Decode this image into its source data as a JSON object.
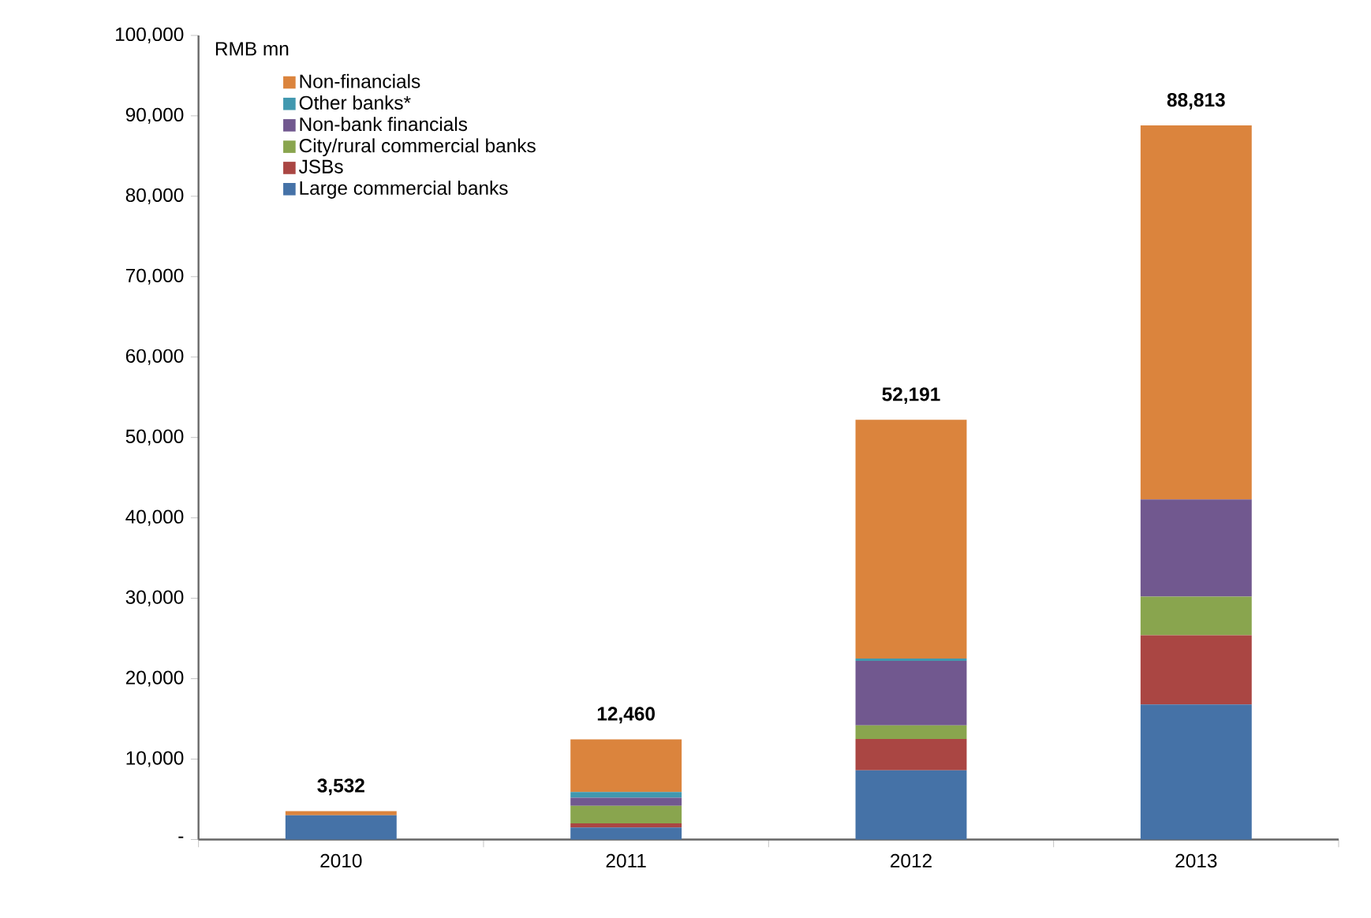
{
  "chart_data": {
    "type": "bar",
    "stacked": true,
    "ylabel": "RMB mn",
    "categories": [
      "2010",
      "2011",
      "2012",
      "2013"
    ],
    "series": [
      {
        "name": "Large commercial banks",
        "color": "#4572a7",
        "values": [
          3000,
          1500,
          8600,
          16800
        ]
      },
      {
        "name": "JSBs",
        "color": "#aa4643",
        "values": [
          0,
          500,
          3900,
          8600
        ]
      },
      {
        "name": "City/rural commercial banks",
        "color": "#89a54e",
        "values": [
          0,
          2200,
          1700,
          4800
        ]
      },
      {
        "name": "Non-bank financials",
        "color": "#71588f",
        "values": [
          0,
          1000,
          8000,
          12100
        ]
      },
      {
        "name": "Other banks*",
        "color": "#4198af",
        "values": [
          0,
          700,
          300,
          0
        ]
      },
      {
        "name": "Non-financials",
        "color": "#db843d",
        "values": [
          532,
          6560,
          29691,
          46513
        ]
      }
    ],
    "totals": [
      "3,532",
      "12,460",
      "52,191",
      "88,813"
    ],
    "ylim": [
      0,
      100000
    ],
    "yticks": [
      {
        "value": 0,
        "label": "-"
      },
      {
        "value": 10000,
        "label": "10,000"
      },
      {
        "value": 20000,
        "label": "20,000"
      },
      {
        "value": 30000,
        "label": "30,000"
      },
      {
        "value": 40000,
        "label": "40,000"
      },
      {
        "value": 50000,
        "label": "50,000"
      },
      {
        "value": 60000,
        "label": "60,000"
      },
      {
        "value": 70000,
        "label": "70,000"
      },
      {
        "value": 80000,
        "label": "80,000"
      },
      {
        "value": 90000,
        "label": "90,000"
      },
      {
        "value": 100000,
        "label": "100,000"
      }
    ],
    "legend": "top left",
    "grid": false
  }
}
